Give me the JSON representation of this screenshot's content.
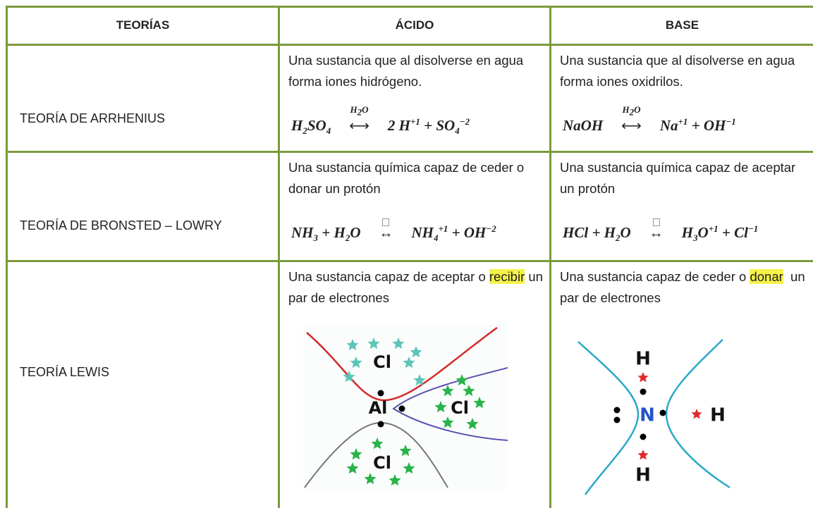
{
  "header": {
    "theories": "TEORÍAS",
    "acid": "ÁCIDO",
    "base": "BASE"
  },
  "rows": [
    {
      "theory": "TEORÍA DE ARRHENIUS",
      "acid": {
        "description": [
          {
            "text": "Una sustancia que al disolverse en agua forma iones hidrógeno."
          }
        ],
        "equation": [
          {
            "text": "H"
          },
          {
            "sub": "2"
          },
          {
            "text": "SO"
          },
          {
            "sub": "4"
          },
          {
            "arrow": "⟷",
            "over": [
              {
                "text": "H"
              },
              {
                "sub": "2"
              },
              {
                "text": "O"
              }
            ]
          },
          {
            "text": "2 H"
          },
          {
            "sup": "+1"
          },
          {
            "text": " + SO"
          },
          {
            "sub": "4"
          },
          {
            "sup": "−2"
          }
        ]
      },
      "base": {
        "description": [
          {
            "text": "Una sustancia que al disolverse en agua forma iones oxidrilos."
          }
        ],
        "equation": [
          {
            "text": "NaOH"
          },
          {
            "arrow": "⟷",
            "over": [
              {
                "text": "H"
              },
              {
                "sub": "2"
              },
              {
                "text": "O"
              }
            ]
          },
          {
            "text": "Na"
          },
          {
            "sup": "+1"
          },
          {
            "text": " + OH"
          },
          {
            "sup": "−1"
          }
        ]
      }
    },
    {
      "theory": "TEORÍA DE BRONSTED – LOWRY",
      "acid": {
        "description": [
          {
            "text": "Una sustancia química capaz de ceder o donar un protón"
          }
        ],
        "equation": [
          {
            "text": "NH"
          },
          {
            "sub": "3"
          },
          {
            "text": " + H"
          },
          {
            "sub": "2"
          },
          {
            "text": "O"
          },
          {
            "arrow": "↔"
          },
          {
            "text": "NH"
          },
          {
            "sub": "4"
          },
          {
            "sup": "+1"
          },
          {
            "text": " + OH"
          },
          {
            "sup": "−2"
          }
        ]
      },
      "base": {
        "description": [
          {
            "text": "Una sustancia química capaz de aceptar un protón"
          }
        ],
        "equation": [
          {
            "text": "HCl"
          },
          {
            "text": " + H"
          },
          {
            "sub": "2"
          },
          {
            "text": "O"
          },
          {
            "arrow": "↔"
          },
          {
            "text": "H"
          },
          {
            "sub": "3"
          },
          {
            "text": "O"
          },
          {
            "sup": "+1"
          },
          {
            "text": " + Cl"
          },
          {
            "sup": "−1"
          }
        ]
      }
    },
    {
      "theory": "TEORÍA LEWIS",
      "acid": {
        "description": [
          {
            "text": "Una sustancia capaz de aceptar o "
          },
          {
            "mark": "recibir"
          },
          {
            "text": " un par de electrones"
          }
        ],
        "diagram": [
          "Cl",
          "Al",
          "Cl",
          "Cl"
        ]
      },
      "base": {
        "description": [
          {
            "text": "Una sustancia capaz de ceder o "
          },
          {
            "mark": "donar"
          },
          {
            "text": "  un par de electrones"
          }
        ],
        "diagram": [
          "H",
          "N",
          "H",
          "H"
        ]
      }
    }
  ]
}
